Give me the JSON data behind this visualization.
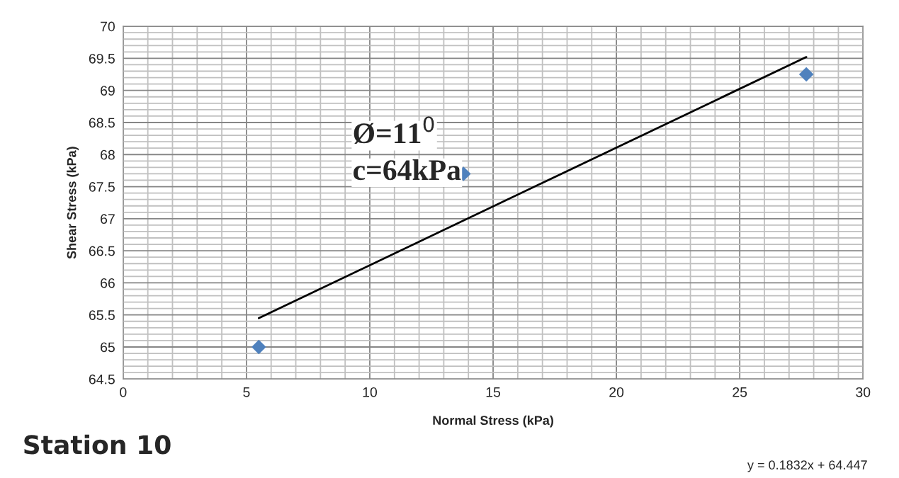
{
  "chart_data": {
    "type": "scatter",
    "xlabel": "Normal Stress (kPa)",
    "ylabel": "Shear Stress (kPa)",
    "series": [
      {
        "color": "#4f81bd",
        "marker": "diamond",
        "x": [
          5.5,
          13.8,
          27.7
        ],
        "values": [
          65.0,
          67.7,
          69.25
        ]
      },
      {
        "type": "line",
        "color": "#000000",
        "marker": "none",
        "line_style": "solid",
        "x": [
          5.5,
          27.7
        ],
        "values": [
          65.45,
          69.52
        ]
      }
    ],
    "xlim": [
      0,
      30
    ],
    "xticks": [
      0,
      5,
      10,
      15,
      20,
      25,
      30
    ],
    "ylim": [
      64.5,
      70
    ],
    "yticks": [
      {
        "value": 64.5,
        "label": "64.5"
      },
      {
        "value": 65,
        "label": "65"
      },
      {
        "value": 65.5,
        "label": "65.5"
      },
      {
        "value": 66,
        "label": "66"
      },
      {
        "value": 66.5,
        "label": "66.5"
      },
      {
        "value": 67,
        "label": "67"
      },
      {
        "value": 67.5,
        "label": "67.5"
      },
      {
        "value": 68,
        "label": "68"
      },
      {
        "value": 68.5,
        "label": "68.5"
      },
      {
        "value": 69,
        "label": "69"
      },
      {
        "value": 69.5,
        "label": "69.5"
      },
      {
        "value": 70,
        "label": "70"
      }
    ],
    "grid": true,
    "legend": false,
    "annotations": [
      "Ø=11$^{0}$",
      "c=64kPa",
      "Station 10",
      "y = 0.1832x + 64.447"
    ]
  }
}
